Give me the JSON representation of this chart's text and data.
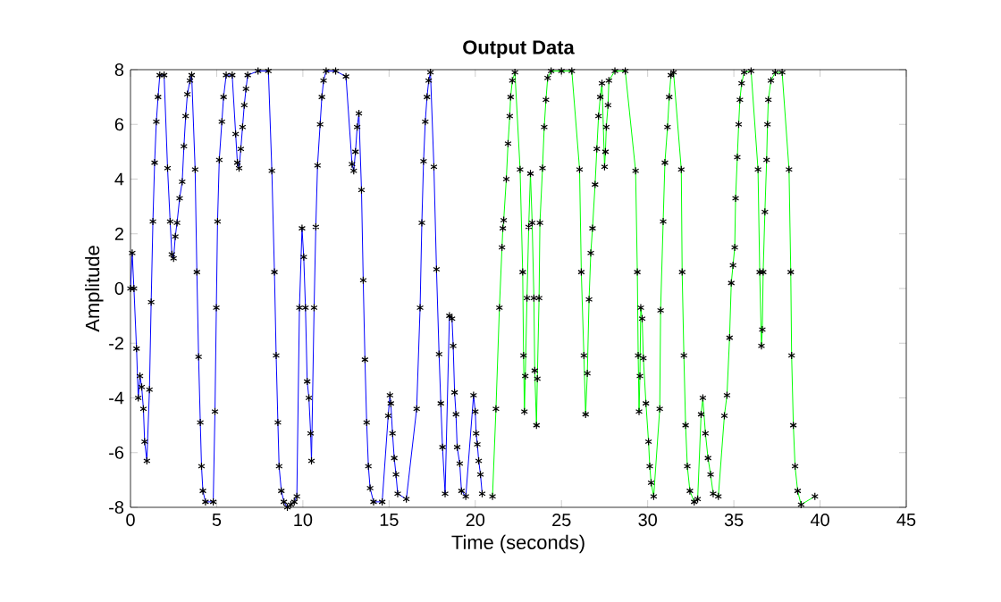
{
  "chart_data": {
    "type": "line",
    "title": "Output Data",
    "xlabel": "Time (seconds)",
    "ylabel": "Amplitude",
    "xlim": [
      0,
      45
    ],
    "ylim": [
      -8,
      8
    ],
    "xticks": [
      0,
      5,
      10,
      15,
      20,
      25,
      30,
      35,
      40,
      45
    ],
    "yticks": [
      -8,
      -6,
      -4,
      -2,
      0,
      2,
      4,
      6,
      8
    ],
    "marker": "cross",
    "line_style": "solid",
    "series": [
      {
        "color": "#0000ff",
        "x": [
          0,
          0.1,
          0.2,
          0.35,
          0.45,
          0.55,
          0.65,
          0.75,
          0.82,
          0.95,
          1.1,
          1.2,
          1.3,
          1.4,
          1.5,
          1.6,
          1.7,
          1.95,
          2.15,
          2.3,
          2.4,
          2.5,
          2.6,
          2.7,
          2.85,
          3.0,
          3.1,
          3.2,
          3.3,
          3.45,
          3.55,
          3.75,
          3.85,
          3.95,
          4.05,
          4.12,
          4.2,
          4.35,
          4.8,
          4.9,
          4.98,
          5.05,
          5.15,
          5.3,
          5.4,
          5.55,
          5.9,
          6.1,
          6.2,
          6.3,
          6.4,
          6.5,
          6.6,
          6.7,
          6.8,
          7.4,
          8.0,
          8.2,
          8.35,
          8.45,
          8.55,
          8.62,
          8.75,
          8.9,
          9.1,
          9.3,
          9.5,
          9.65,
          9.8,
          9.95,
          10.05,
          10.15,
          10.25,
          10.35,
          10.45,
          10.5,
          10.65,
          10.75,
          10.85,
          11.0,
          11.1,
          11.2,
          11.35,
          11.9,
          12.5,
          12.85,
          12.95,
          13.05,
          13.15,
          13.25,
          13.4,
          13.5,
          13.6,
          13.7,
          13.8,
          13.9,
          14.1,
          14.6,
          14.95,
          15.05,
          15.1,
          15.2,
          15.3,
          15.4,
          15.5,
          16.0,
          16.6,
          16.8,
          16.9,
          17.0,
          17.1,
          17.2,
          17.3,
          17.4,
          17.6,
          17.75,
          17.9,
          18.0,
          18.1,
          18.25,
          18.5,
          18.65,
          18.72,
          18.8,
          18.88,
          18.95,
          19.1,
          19.2,
          19.45,
          19.9,
          20.0,
          20.05,
          20.12,
          20.2,
          20.3,
          20.4
        ],
        "values": [
          0,
          1.3,
          0,
          -2.2,
          -4.0,
          -3.2,
          -3.6,
          -4.4,
          -5.6,
          -6.3,
          -3.7,
          -0.5,
          2.45,
          4.6,
          6.1,
          7.0,
          7.8,
          7.8,
          4.4,
          2.45,
          1.25,
          1.1,
          1.9,
          2.4,
          3.3,
          3.9,
          5.2,
          6.3,
          7.1,
          7.6,
          7.8,
          4.35,
          0.6,
          -2.5,
          -4.9,
          -6.5,
          -7.4,
          -7.8,
          -7.8,
          -4.5,
          -0.7,
          2.45,
          4.7,
          6.1,
          7.0,
          7.8,
          7.8,
          5.65,
          4.6,
          4.4,
          5.1,
          5.9,
          6.7,
          7.3,
          7.8,
          7.95,
          7.95,
          4.3,
          0.6,
          -2.45,
          -4.9,
          -6.5,
          -7.4,
          -7.8,
          -8.0,
          -7.9,
          -7.8,
          -7.6,
          -0.7,
          2.2,
          1.15,
          -0.7,
          -3.4,
          -4.0,
          -5.3,
          -6.3,
          -0.7,
          2.25,
          4.5,
          6.0,
          7.0,
          7.6,
          7.95,
          7.95,
          7.75,
          4.55,
          4.3,
          5.0,
          5.9,
          6.4,
          3.6,
          0.3,
          -2.6,
          -4.9,
          -6.5,
          -7.3,
          -7.8,
          -7.8,
          -4.65,
          -3.9,
          -4.2,
          -5.3,
          -6.2,
          -6.8,
          -7.5,
          -7.7,
          -4.4,
          -0.7,
          2.4,
          4.65,
          6.1,
          7.0,
          7.6,
          7.9,
          4.45,
          0.7,
          -2.4,
          -4.2,
          -5.8,
          -7.5,
          -1.0,
          -1.1,
          -2.1,
          -3.8,
          -4.6,
          -5.8,
          -6.4,
          -7.4,
          -7.6,
          -3.9,
          -4.5,
          -5.3,
          -5.7,
          -6.3,
          -6.8,
          -7.5
        ]
      },
      {
        "color": "#00ff00",
        "x": [
          21.0,
          21.2,
          21.4,
          21.55,
          21.6,
          21.65,
          21.8,
          21.9,
          22.0,
          22.05,
          22.15,
          22.3,
          22.6,
          22.75,
          22.8,
          22.85,
          22.9,
          23.0,
          23.1,
          23.2,
          23.3,
          23.4,
          23.45,
          23.55,
          23.6,
          23.7,
          23.75,
          23.9,
          24.0,
          24.1,
          24.2,
          24.4,
          25.0,
          25.6,
          26.05,
          26.15,
          26.3,
          26.4,
          26.5,
          26.6,
          26.7,
          26.8,
          26.95,
          27.05,
          27.15,
          27.25,
          27.35,
          27.5,
          27.55,
          27.6,
          27.7,
          27.75,
          28.1,
          28.7,
          29.3,
          29.4,
          29.45,
          29.5,
          29.55,
          29.6,
          29.68,
          29.75,
          29.9,
          30.05,
          30.12,
          30.2,
          30.35,
          30.7,
          30.75,
          30.9,
          31.0,
          31.15,
          31.25,
          31.35,
          31.5,
          31.95,
          32.0,
          32.1,
          32.2,
          32.3,
          32.45,
          32.7,
          32.9,
          33.1,
          33.2,
          33.35,
          33.5,
          33.65,
          33.8,
          34.1,
          34.45,
          34.6,
          34.75,
          34.85,
          34.95,
          35.05,
          35.1,
          35.2,
          35.28,
          35.35,
          35.45,
          35.6,
          36.0,
          36.4,
          36.5,
          36.6,
          36.65,
          36.7,
          36.8,
          36.9,
          36.95,
          37.0,
          37.15,
          37.4,
          37.8,
          38.2,
          38.3,
          38.35,
          38.45,
          38.55,
          38.7,
          38.9,
          39.7
        ],
        "values": [
          -7.6,
          -4.4,
          -0.7,
          1.5,
          2.2,
          2.5,
          4.0,
          5.3,
          6.3,
          7.0,
          7.6,
          7.9,
          4.35,
          0.6,
          -2.45,
          -4.5,
          -3.2,
          -0.35,
          2.25,
          4.2,
          2.4,
          -0.35,
          -3.0,
          -5.0,
          -3.3,
          -0.35,
          2.4,
          4.4,
          5.9,
          6.9,
          7.7,
          7.95,
          7.95,
          7.95,
          4.35,
          0.6,
          -2.45,
          -4.6,
          -3.1,
          -0.4,
          1.3,
          2.2,
          3.8,
          5.1,
          6.3,
          7.0,
          7.5,
          4.45,
          5.0,
          5.9,
          6.7,
          7.6,
          7.95,
          7.95,
          4.3,
          0.6,
          -2.45,
          -4.5,
          -3.2,
          -0.7,
          -1.1,
          -2.55,
          -4.2,
          -5.6,
          -6.5,
          -7.1,
          -7.6,
          -4.4,
          -0.8,
          2.45,
          4.6,
          5.9,
          7.0,
          7.8,
          7.9,
          4.35,
          0.6,
          -2.45,
          -5.0,
          -6.5,
          -7.4,
          -7.8,
          -7.7,
          -4.6,
          -4.0,
          -5.3,
          -6.2,
          -6.8,
          -7.5,
          -7.6,
          -4.65,
          -3.9,
          -1.8,
          0.2,
          0.85,
          1.5,
          3.3,
          4.8,
          6.0,
          6.9,
          7.5,
          7.9,
          7.95,
          4.35,
          0.6,
          -2.1,
          -1.5,
          0.6,
          2.8,
          4.7,
          6.0,
          6.9,
          7.6,
          7.9,
          7.9,
          4.35,
          0.6,
          -2.45,
          -5.0,
          -6.5,
          -7.4,
          -7.9,
          -7.6
        ]
      }
    ]
  }
}
